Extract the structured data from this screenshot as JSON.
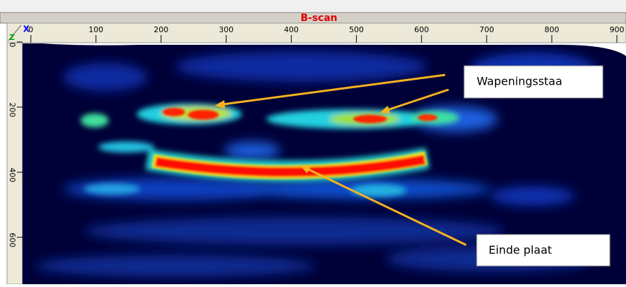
{
  "window": {
    "title": "B-scan",
    "x_axis_label": "X",
    "z_axis_label": "Z",
    "xticks": [
      0,
      100,
      200,
      300,
      400,
      500,
      600,
      700,
      800,
      900
    ],
    "zticks": [
      0,
      200,
      400,
      600
    ]
  },
  "annotations": [
    {
      "label": "Wapeningsstaa"
    },
    {
      "label": "Einde plaat"
    }
  ]
}
